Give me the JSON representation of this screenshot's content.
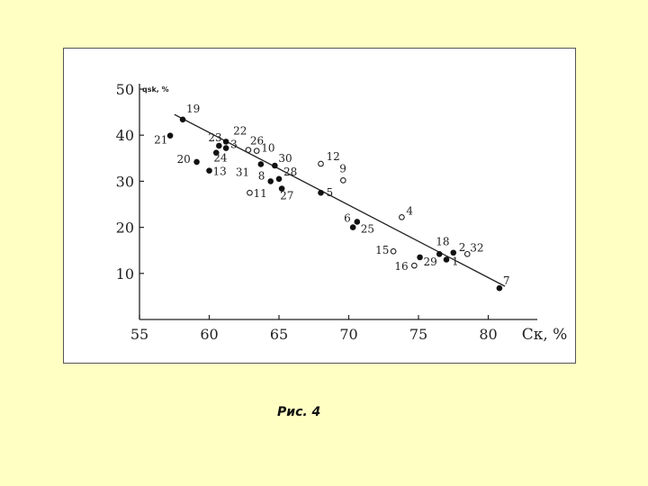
{
  "caption": "Рис. 4",
  "chart_data": {
    "type": "scatter",
    "ylabel": "qsk, %",
    "xlabel": "Cк, %",
    "xlim": [
      55,
      83
    ],
    "ylim": [
      0,
      50
    ],
    "xticks": [
      55,
      60,
      65,
      70,
      75,
      80
    ],
    "yticks": [
      10,
      20,
      30,
      40,
      50
    ],
    "grid": false,
    "points": [
      {
        "id": "1",
        "x": 77.0,
        "y": 13.0,
        "filled": true
      },
      {
        "id": "2",
        "x": 77.5,
        "y": 14.5,
        "filled": true
      },
      {
        "id": "3",
        "x": 61.2,
        "y": 37.2,
        "filled": true
      },
      {
        "id": "4",
        "x": 73.8,
        "y": 22.2,
        "filled": false
      },
      {
        "id": "5",
        "x": 68.0,
        "y": 27.5,
        "filled": true
      },
      {
        "id": "6",
        "x": 70.3,
        "y": 20.0,
        "filled": true
      },
      {
        "id": "7",
        "x": 80.8,
        "y": 6.8,
        "filled": true
      },
      {
        "id": "8",
        "x": 64.4,
        "y": 30.0,
        "filled": true
      },
      {
        "id": "9",
        "x": 69.6,
        "y": 30.2,
        "filled": false
      },
      {
        "id": "10",
        "x": 63.4,
        "y": 36.6,
        "filled": false
      },
      {
        "id": "11",
        "x": 62.9,
        "y": 27.5,
        "filled": false
      },
      {
        "id": "12",
        "x": 68.0,
        "y": 33.8,
        "filled": false
      },
      {
        "id": "13",
        "x": 60.0,
        "y": 32.3,
        "filled": true
      },
      {
        "id": "15",
        "x": 73.2,
        "y": 14.8,
        "filled": false
      },
      {
        "id": "16",
        "x": 74.7,
        "y": 11.7,
        "filled": false
      },
      {
        "id": "18",
        "x": 76.5,
        "y": 14.2,
        "filled": true
      },
      {
        "id": "19",
        "x": 58.1,
        "y": 43.4,
        "filled": true
      },
      {
        "id": "20",
        "x": 59.1,
        "y": 34.2,
        "filled": true
      },
      {
        "id": "21",
        "x": 57.2,
        "y": 39.9,
        "filled": true
      },
      {
        "id": "22",
        "x": 61.2,
        "y": 38.6,
        "filled": true
      },
      {
        "id": "23",
        "x": 60.7,
        "y": 37.7,
        "filled": true
      },
      {
        "id": "24",
        "x": 60.5,
        "y": 36.2,
        "filled": true
      },
      {
        "id": "25",
        "x": 70.6,
        "y": 21.2,
        "filled": true
      },
      {
        "id": "26",
        "x": 62.8,
        "y": 36.8,
        "filled": false
      },
      {
        "id": "27",
        "x": 65.2,
        "y": 28.4,
        "filled": true
      },
      {
        "id": "28",
        "x": 65.0,
        "y": 30.5,
        "filled": true
      },
      {
        "id": "29",
        "x": 75.1,
        "y": 13.5,
        "filled": true
      },
      {
        "id": "30",
        "x": 64.7,
        "y": 33.4,
        "filled": true
      },
      {
        "id": "31",
        "x": 63.7,
        "y": 33.7,
        "filled": true
      },
      {
        "id": "32",
        "x": 78.5,
        "y": 14.2,
        "filled": false
      }
    ],
    "trendline": {
      "x": [
        57.5,
        81.2
      ],
      "y": [
        44.5,
        7.2
      ]
    }
  }
}
